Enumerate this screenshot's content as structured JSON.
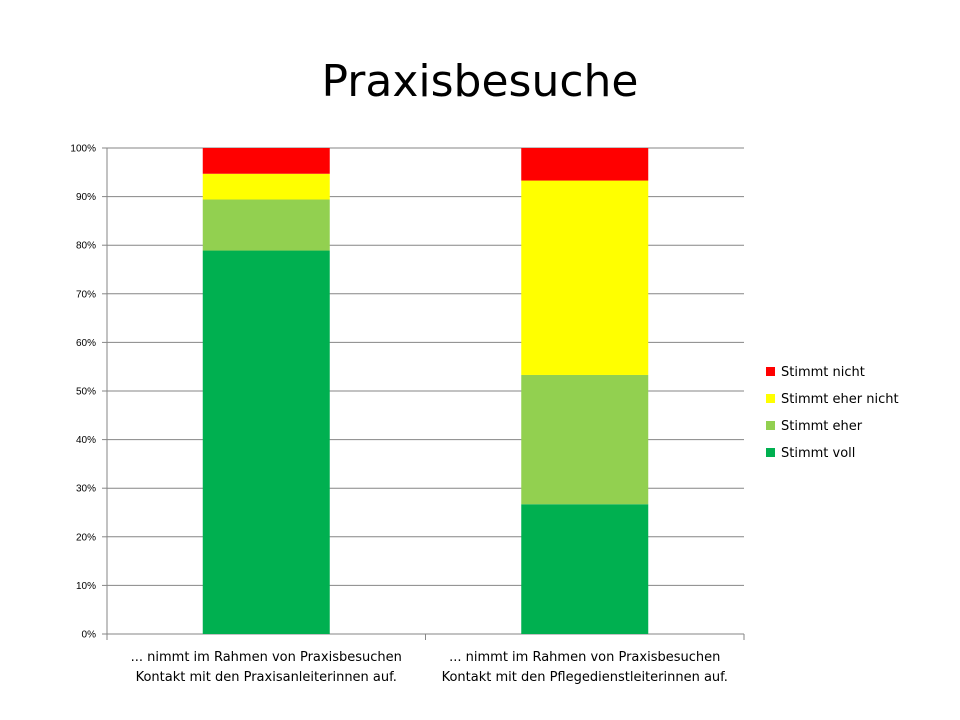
{
  "chart_data": {
    "type": "bar",
    "stacked": true,
    "percent_stacked": true,
    "title": "Praxisbesuche",
    "xlabel": "",
    "ylabel": "",
    "ylim": [
      0,
      100
    ],
    "yticks": [
      "0%",
      "10%",
      "20%",
      "30%",
      "40%",
      "50%",
      "60%",
      "70%",
      "80%",
      "90%",
      "100%"
    ],
    "grid": true,
    "legend_position": "right",
    "categories": [
      "... nimmt im Rahmen von Praxisbesuchen Kontakt mit den Praxisanleiterinnen auf.",
      "... nimmt im Rahmen von Praxisbesuchen Kontakt mit den Pflegedienstleiterinnen auf."
    ],
    "category_lines": [
      [
        "... nimmt im Rahmen von Praxisbesuchen",
        "Kontakt mit den Praxisanleiterinnen auf."
      ],
      [
        "... nimmt im Rahmen von Praxisbesuchen",
        "Kontakt mit den Pflegedienstleiterinnen auf."
      ]
    ],
    "series": [
      {
        "name": "Stimmt voll",
        "color": "#00b050",
        "values": [
          78.9,
          26.7
        ]
      },
      {
        "name": "Stimmt eher",
        "color": "#92d050",
        "values": [
          10.5,
          26.6
        ]
      },
      {
        "name": "Stimmt eher nicht",
        "color": "#ffff00",
        "values": [
          5.3,
          40.0
        ]
      },
      {
        "name": "Stimmt nicht",
        "color": "#ff0000",
        "values": [
          5.3,
          6.7
        ]
      }
    ],
    "legend_order": [
      "Stimmt nicht",
      "Stimmt eher nicht",
      "Stimmt eher",
      "Stimmt voll"
    ],
    "colors": {
      "axis": "#868686",
      "grid": "#868686"
    }
  }
}
